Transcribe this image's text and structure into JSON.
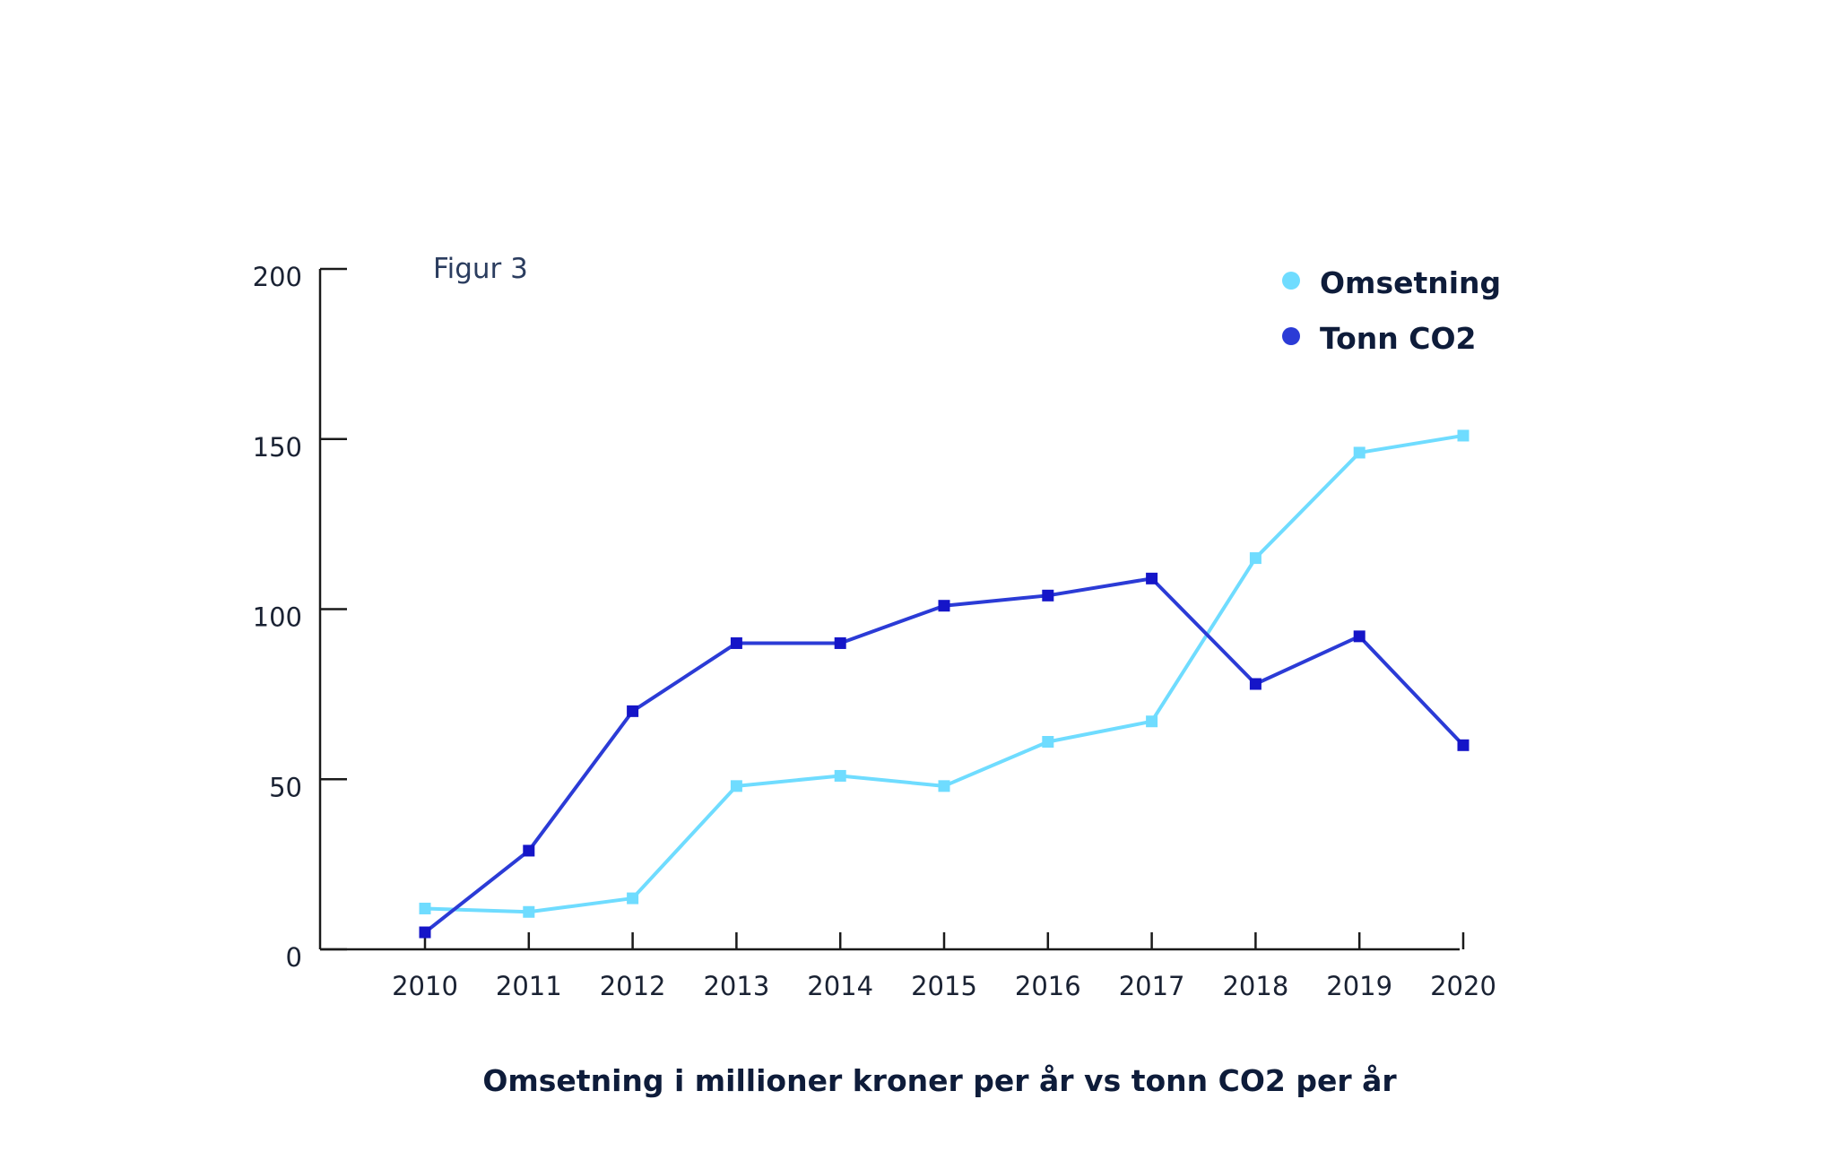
{
  "chart_data": {
    "type": "line",
    "figure_label": "Figur 3",
    "caption": "Omsetning i millioner kroner per år vs tonn CO2 per år",
    "categories": [
      "2010",
      "2011",
      "2012",
      "2013",
      "2014",
      "2015",
      "2016",
      "2017",
      "2018",
      "2019",
      "2020"
    ],
    "yticks": [
      "0",
      "50",
      "100",
      "150",
      "200"
    ],
    "ylim": [
      0,
      200
    ],
    "grid": false,
    "legend_position": "top-right",
    "series": [
      {
        "name": "Omsetning",
        "color": "#6fdcff",
        "values": [
          12,
          11,
          15,
          48,
          51,
          48,
          61,
          67,
          115,
          146,
          151
        ]
      },
      {
        "name": "Tonn CO2",
        "color": "#2b3bd6",
        "values": [
          5,
          29,
          70,
          90,
          90,
          101,
          104,
          109,
          78,
          92,
          60
        ]
      }
    ]
  }
}
